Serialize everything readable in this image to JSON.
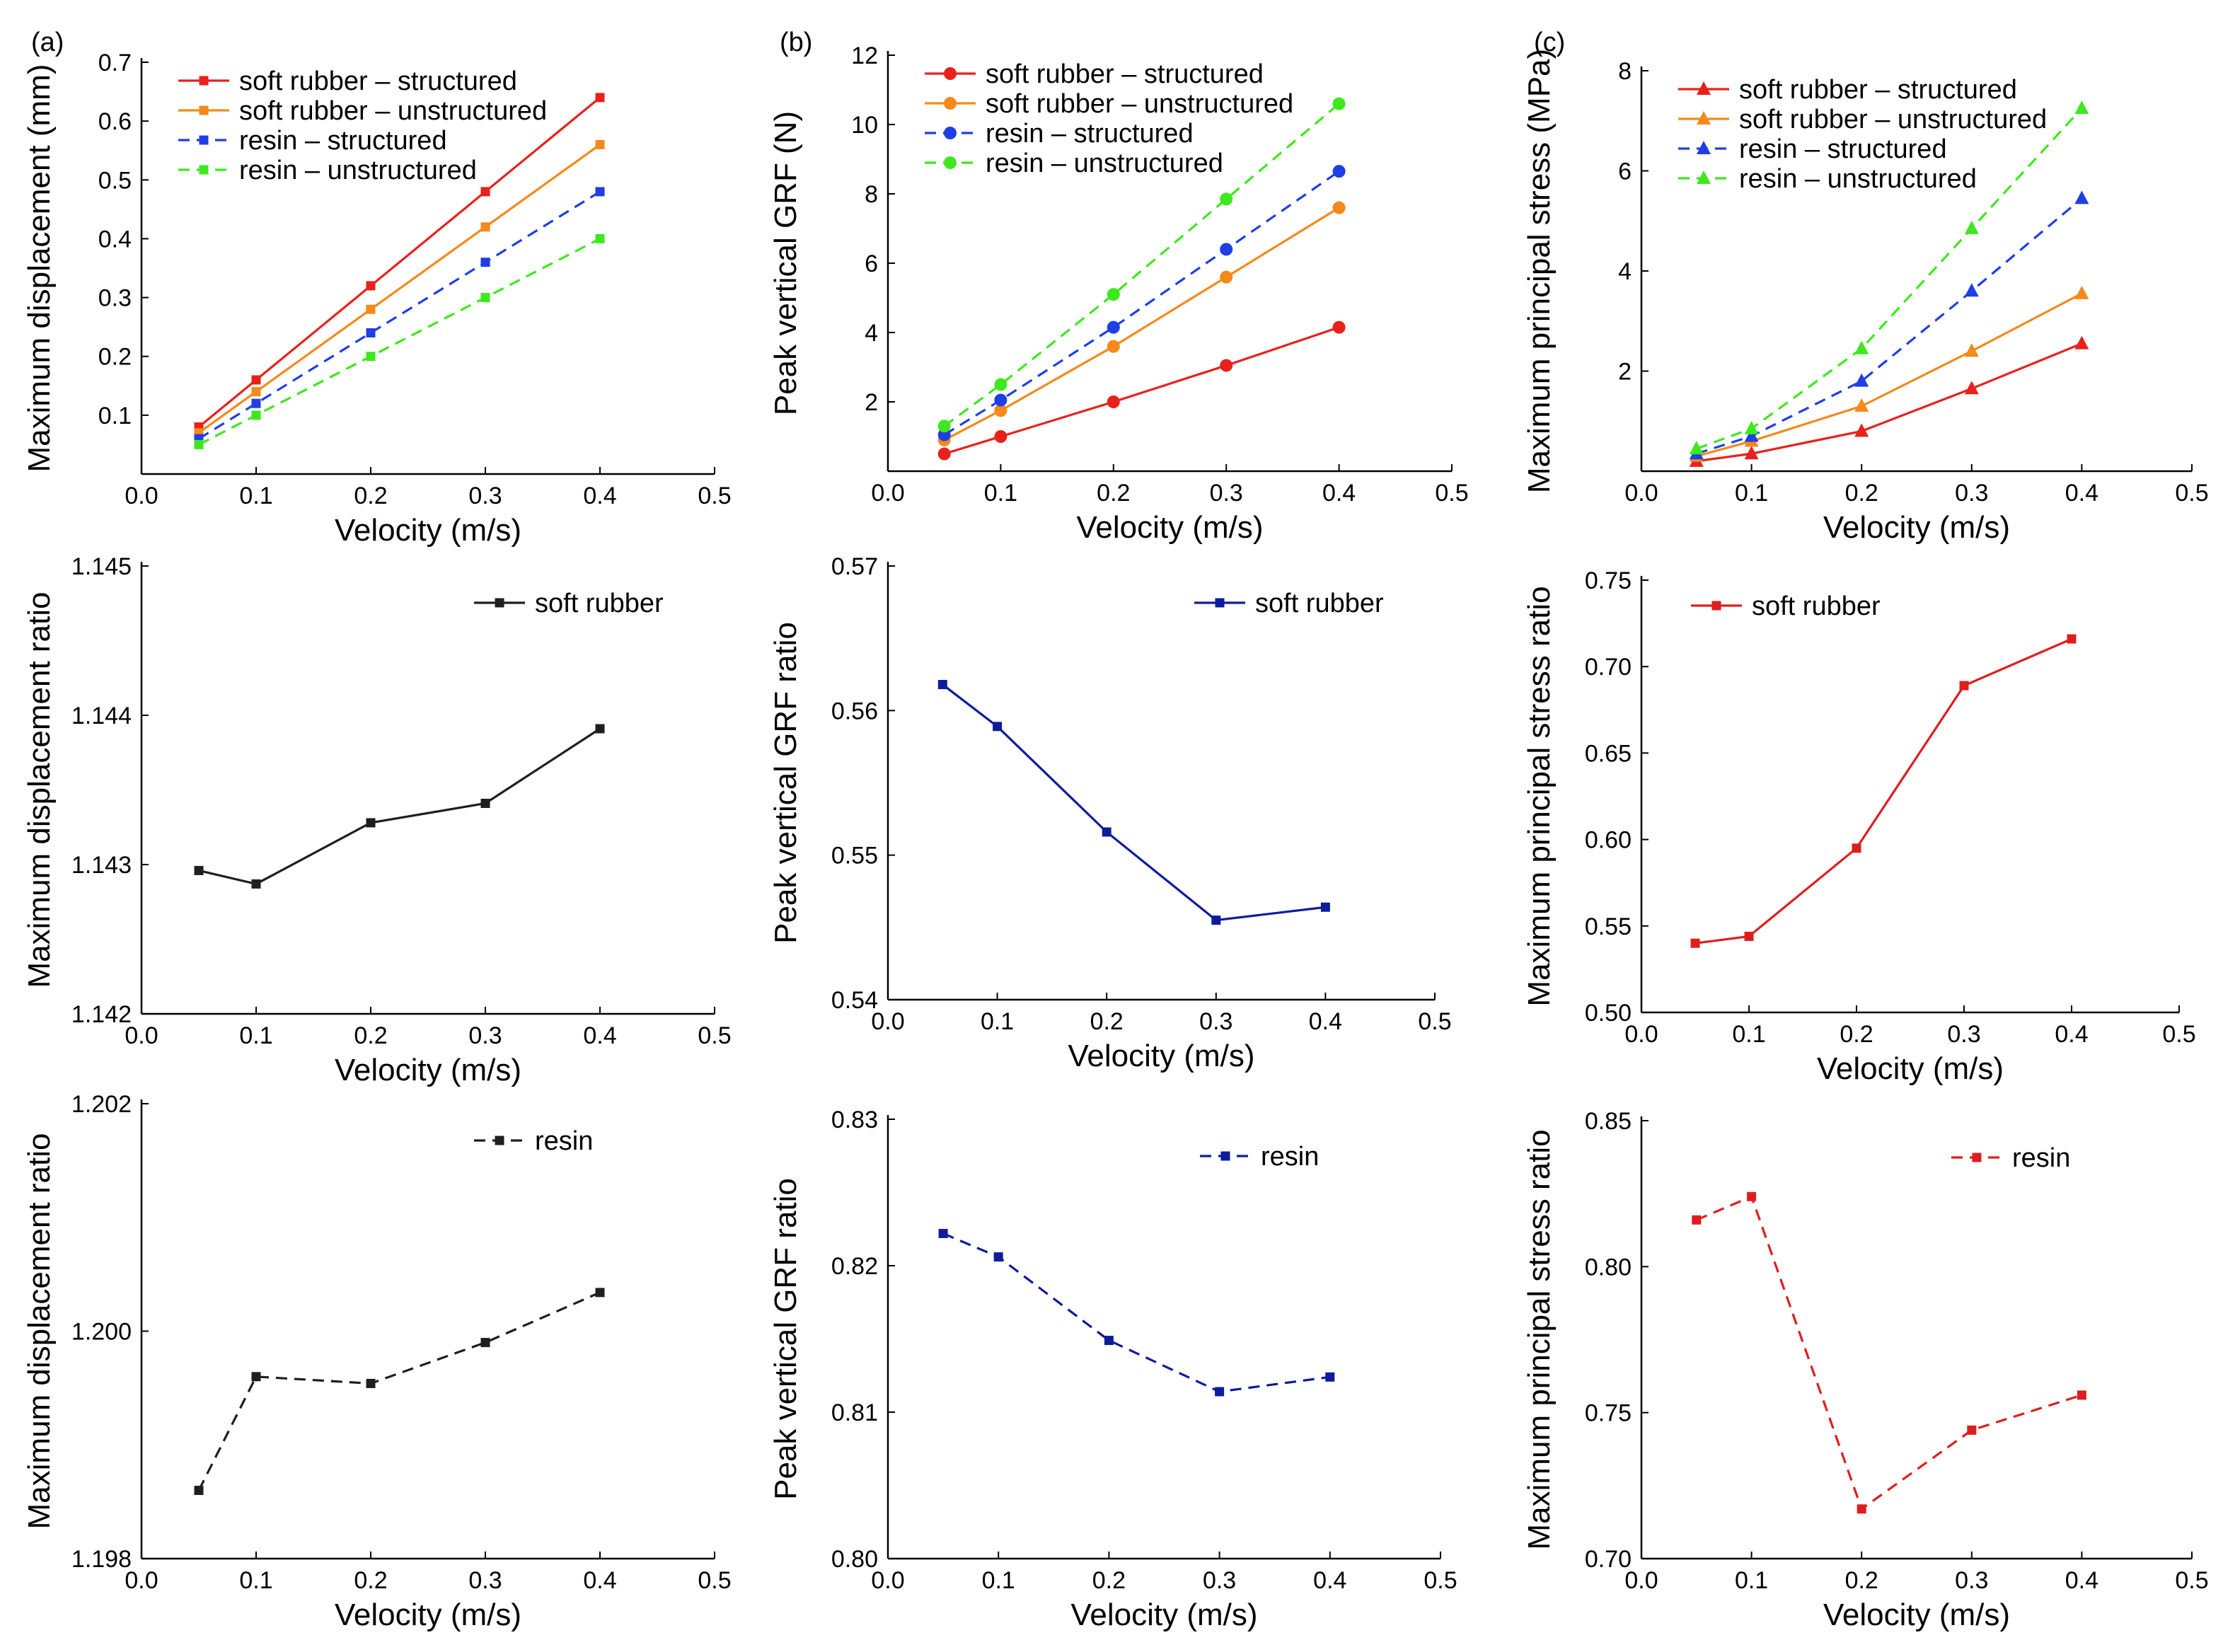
{
  "panel_labels": [
    "(a)",
    "(b)",
    "(c)"
  ],
  "series_colors": {
    "red": "#e8211c",
    "orange": "#f5891b",
    "blue": "#1f3ee6",
    "green": "#3ee81f",
    "black": "#1f1f1f",
    "navy": "#0d1c9c",
    "crimson": "#e01d1d"
  },
  "chart_data": [
    {
      "id": "a1",
      "panel_label": "(a)",
      "type": "line",
      "xlabel": "Velocity (m/s)",
      "ylabel": "Maximum displacement (mm)",
      "xlim": [
        0,
        0.5
      ],
      "ylim": [
        0,
        0.7
      ],
      "xticks": [
        0.0,
        0.1,
        0.2,
        0.3,
        0.4,
        0.5
      ],
      "yticks": [
        0.1,
        0.2,
        0.3,
        0.4,
        0.5,
        0.6,
        0.7
      ],
      "ydecimals": 1,
      "x": [
        0.05,
        0.1,
        0.2,
        0.3,
        0.4
      ],
      "legend_position": "top-left",
      "series": [
        {
          "name": "soft rubber – structured",
          "values": [
            0.08,
            0.16,
            0.32,
            0.48,
            0.64
          ],
          "color": "#e8211c",
          "dash": "solid",
          "marker": "square"
        },
        {
          "name": "soft rubber – unstructured",
          "values": [
            0.07,
            0.14,
            0.28,
            0.42,
            0.56
          ],
          "color": "#f5891b",
          "dash": "solid",
          "marker": "square"
        },
        {
          "name": "resin – structured",
          "values": [
            0.06,
            0.12,
            0.24,
            0.36,
            0.48
          ],
          "color": "#1f3ee6",
          "dash": "dashed",
          "marker": "square"
        },
        {
          "name": "resin – unstructured",
          "values": [
            0.05,
            0.1,
            0.2,
            0.3,
            0.4
          ],
          "color": "#3ee81f",
          "dash": "dashed",
          "marker": "square"
        }
      ]
    },
    {
      "id": "b1",
      "panel_label": "(b)",
      "type": "line",
      "xlabel": "Velocity (m/s)",
      "ylabel": "Peak vertical GRF (N)",
      "xlim": [
        0,
        0.5
      ],
      "ylim": [
        0,
        12
      ],
      "xticks": [
        0.0,
        0.1,
        0.2,
        0.3,
        0.4,
        0.5
      ],
      "yticks": [
        2,
        4,
        6,
        8,
        10,
        12
      ],
      "ydecimals": 0,
      "x": [
        0.05,
        0.1,
        0.2,
        0.3,
        0.4
      ],
      "legend_position": "top-left",
      "series": [
        {
          "name": "soft rubber – structured",
          "values": [
            0.5,
            1.0,
            2.0,
            3.05,
            4.15
          ],
          "color": "#e8211c",
          "dash": "solid",
          "marker": "circle"
        },
        {
          "name": "soft rubber – unstructured",
          "values": [
            0.9,
            1.75,
            3.6,
            5.6,
            7.6
          ],
          "color": "#f5891b",
          "dash": "solid",
          "marker": "circle"
        },
        {
          "name": "resin – structured",
          "values": [
            1.05,
            2.05,
            4.15,
            6.4,
            8.65
          ],
          "color": "#1f3ee6",
          "dash": "dashed",
          "marker": "circle"
        },
        {
          "name": "resin – unstructured",
          "values": [
            1.3,
            2.5,
            5.1,
            7.85,
            10.6
          ],
          "color": "#3ee81f",
          "dash": "dashed",
          "marker": "circle"
        }
      ]
    },
    {
      "id": "c1",
      "panel_label": "(c)",
      "type": "line",
      "xlabel": "Velocity (m/s)",
      "ylabel": "Maximum principal stress (MPa)",
      "xlim": [
        0,
        0.5
      ],
      "ylim": [
        0,
        8
      ],
      "xticks": [
        0.0,
        0.1,
        0.2,
        0.3,
        0.4,
        0.5
      ],
      "yticks": [
        2,
        4,
        6,
        8
      ],
      "ydecimals": 0,
      "x": [
        0.05,
        0.1,
        0.2,
        0.3,
        0.4
      ],
      "legend_position": "top-left",
      "series": [
        {
          "name": "soft rubber – structured",
          "values": [
            0.2,
            0.35,
            0.8,
            1.65,
            2.55
          ],
          "color": "#e8211c",
          "dash": "solid",
          "marker": "triangle"
        },
        {
          "name": "soft rubber – unstructured",
          "values": [
            0.3,
            0.6,
            1.3,
            2.4,
            3.55
          ],
          "color": "#f5891b",
          "dash": "solid",
          "marker": "triangle"
        },
        {
          "name": "resin – structured",
          "values": [
            0.35,
            0.7,
            1.8,
            3.6,
            5.45
          ],
          "color": "#1f3ee6",
          "dash": "dashed",
          "marker": "triangle"
        },
        {
          "name": "resin – unstructured",
          "values": [
            0.45,
            0.85,
            2.45,
            4.85,
            7.25
          ],
          "color": "#3ee81f",
          "dash": "dashed",
          "marker": "triangle"
        }
      ]
    },
    {
      "id": "a2",
      "type": "line",
      "xlabel": "Velocity (m/s)",
      "ylabel": "Maximum displacement ratio",
      "xlim": [
        0,
        0.5
      ],
      "ylim": [
        1.142,
        1.145
      ],
      "xticks": [
        0.0,
        0.1,
        0.2,
        0.3,
        0.4,
        0.5
      ],
      "yticks": [
        1.142,
        1.143,
        1.144,
        1.145
      ],
      "ydecimals": 3,
      "x": [
        0.05,
        0.1,
        0.2,
        0.3,
        0.4
      ],
      "legend_position": "top-right",
      "series": [
        {
          "name": "soft rubber",
          "values": [
            1.14296,
            1.14287,
            1.14328,
            1.14341,
            1.14391
          ],
          "color": "#1f1f1f",
          "dash": "solid",
          "marker": "square"
        }
      ]
    },
    {
      "id": "b2",
      "type": "line",
      "xlabel": "Velocity (m/s)",
      "ylabel": "Peak vertical GRF ratio",
      "xlim": [
        0,
        0.5
      ],
      "ylim": [
        0.54,
        0.57
      ],
      "xticks": [
        0.0,
        0.1,
        0.2,
        0.3,
        0.4,
        0.5
      ],
      "yticks": [
        0.54,
        0.55,
        0.56,
        0.57
      ],
      "ydecimals": 2,
      "x": [
        0.05,
        0.1,
        0.2,
        0.3,
        0.4
      ],
      "legend_position": "top-right",
      "series": [
        {
          "name": "soft rubber",
          "values": [
            0.5618,
            0.5589,
            0.5516,
            0.5455,
            0.5464
          ],
          "color": "#0d1c9c",
          "dash": "solid",
          "marker": "square"
        }
      ]
    },
    {
      "id": "c2",
      "type": "line",
      "xlabel": "Velocity (m/s)",
      "ylabel": "Maximum principal stress ratio",
      "xlim": [
        0,
        0.5
      ],
      "ylim": [
        0.5,
        0.75
      ],
      "xticks": [
        0.0,
        0.1,
        0.2,
        0.3,
        0.4,
        0.5
      ],
      "yticks": [
        0.5,
        0.55,
        0.6,
        0.65,
        0.7,
        0.75
      ],
      "ydecimals": 2,
      "x": [
        0.05,
        0.1,
        0.2,
        0.3,
        0.4
      ],
      "legend_position": "top-left",
      "series": [
        {
          "name": "soft rubber",
          "values": [
            0.54,
            0.544,
            0.595,
            0.689,
            0.716
          ],
          "color": "#e01d1d",
          "dash": "solid",
          "marker": "square"
        }
      ]
    },
    {
      "id": "a3",
      "type": "line",
      "xlabel": "Velocity (m/s)",
      "ylabel": "Maximum displacement ratio",
      "xlim": [
        0,
        0.5
      ],
      "ylim": [
        1.198,
        1.202
      ],
      "xticks": [
        0.0,
        0.1,
        0.2,
        0.3,
        0.4,
        0.5
      ],
      "yticks": [
        1.198,
        1.2,
        1.202
      ],
      "ydecimals": 3,
      "x": [
        0.05,
        0.1,
        0.2,
        0.3,
        0.4
      ],
      "legend_position": "top-right",
      "series": [
        {
          "name": "resin",
          "values": [
            1.1986,
            1.1996,
            1.19954,
            1.1999,
            1.20034
          ],
          "color": "#1f1f1f",
          "dash": "dashed",
          "marker": "square"
        }
      ]
    },
    {
      "id": "b3",
      "type": "line",
      "xlabel": "Velocity (m/s)",
      "ylabel": "Peak vertical GRF ratio",
      "xlim": [
        0,
        0.5
      ],
      "ylim": [
        0.8,
        0.83
      ],
      "xticks": [
        0.0,
        0.1,
        0.2,
        0.3,
        0.4,
        0.5
      ],
      "yticks": [
        0.8,
        0.81,
        0.82,
        0.83
      ],
      "ydecimals": 2,
      "x": [
        0.05,
        0.1,
        0.2,
        0.3,
        0.4
      ],
      "legend_position": "top-right",
      "series": [
        {
          "name": "resin",
          "values": [
            0.8222,
            0.8206,
            0.8149,
            0.8114,
            0.8124
          ],
          "color": "#0d1c9c",
          "dash": "dashed",
          "marker": "square"
        }
      ]
    },
    {
      "id": "c3",
      "type": "line",
      "xlabel": "Velocity (m/s)",
      "ylabel": "Maximum principal stress ratio",
      "xlim": [
        0,
        0.5
      ],
      "ylim": [
        0.7,
        0.85
      ],
      "xticks": [
        0.0,
        0.1,
        0.2,
        0.3,
        0.4,
        0.5
      ],
      "yticks": [
        0.7,
        0.75,
        0.8,
        0.85
      ],
      "ydecimals": 2,
      "x": [
        0.05,
        0.1,
        0.2,
        0.3,
        0.4
      ],
      "legend_position": "top-right",
      "series": [
        {
          "name": "resin",
          "values": [
            0.816,
            0.824,
            0.717,
            0.744,
            0.756
          ],
          "color": "#e01d1d",
          "dash": "dashed",
          "marker": "square"
        }
      ]
    }
  ]
}
